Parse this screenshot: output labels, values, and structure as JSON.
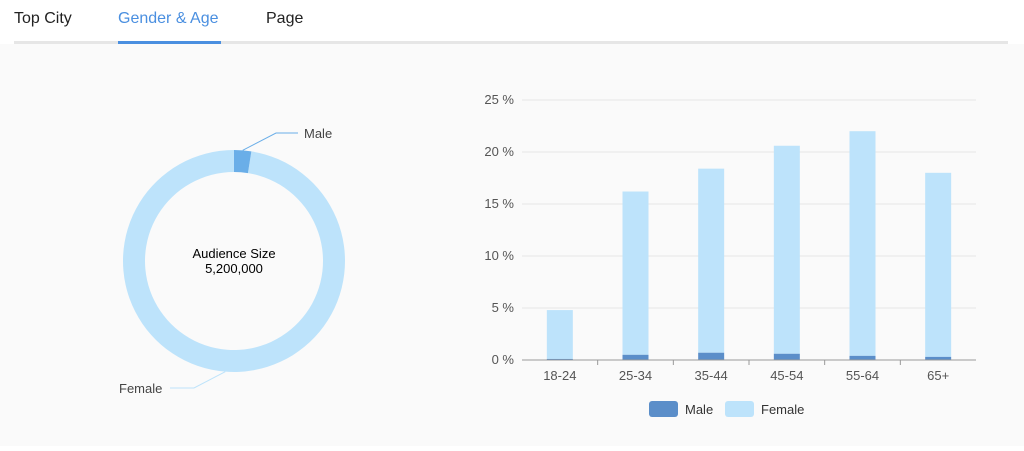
{
  "tabs": [
    {
      "label": "Top City",
      "active": false
    },
    {
      "label": "Gender & Age",
      "active": true
    },
    {
      "label": "Page",
      "active": false
    }
  ],
  "colors": {
    "accent": "#4a8fe0",
    "male_donut": "#6aaee8",
    "female_donut": "#bde3fb",
    "male_bar": "#5b8ec9",
    "female_bar": "#bde3fb"
  },
  "chart_data": [
    {
      "type": "pie",
      "title": "",
      "center_label": "Audience Size",
      "center_value": "5,200,000",
      "slices": [
        {
          "name": "Male",
          "value": 2.5
        },
        {
          "name": "Female",
          "value": 97.5
        }
      ]
    },
    {
      "type": "bar",
      "stacked": true,
      "categories": [
        "18-24",
        "25-34",
        "35-44",
        "45-54",
        "55-64",
        "65+"
      ],
      "series": [
        {
          "name": "Male",
          "values": [
            0.1,
            0.5,
            0.7,
            0.6,
            0.4,
            0.3
          ]
        },
        {
          "name": "Female",
          "values": [
            4.7,
            15.7,
            17.7,
            20.0,
            21.6,
            17.7
          ]
        }
      ],
      "ylim": [
        0,
        25
      ],
      "yticks": [
        "0 %",
        "5 %",
        "10 %",
        "15 %",
        "20 %",
        "25 %"
      ],
      "grid": true,
      "legend": "bottom-center"
    }
  ]
}
